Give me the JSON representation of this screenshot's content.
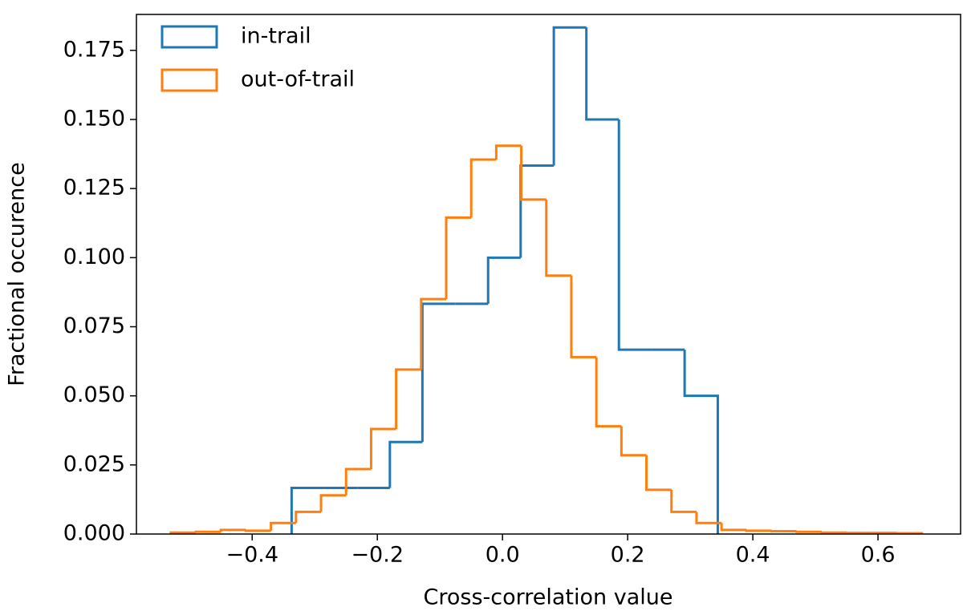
{
  "chart_data": {
    "type": "histogram",
    "xlabel": "Cross-correlation value",
    "ylabel": "Fractional occurence",
    "legend": "upper left",
    "xlim": [
      -0.585,
      0.732
    ],
    "ylim": [
      0,
      0.188
    ],
    "xticks": [
      {
        "value": -0.4,
        "label": "−0.4"
      },
      {
        "value": -0.2,
        "label": "−0.2"
      },
      {
        "value": 0,
        "label": "0.0"
      },
      {
        "value": 0.2,
        "label": "0.2"
      },
      {
        "value": 0.4,
        "label": "0.4"
      },
      {
        "value": 0.6,
        "label": "0.6"
      }
    ],
    "yticks": [
      {
        "value": 0,
        "label": "0.000"
      },
      {
        "value": 0.025,
        "label": "0.025"
      },
      {
        "value": 0.05,
        "label": "0.050"
      },
      {
        "value": 0.075,
        "label": "0.075"
      },
      {
        "value": 0.1,
        "label": "0.100"
      },
      {
        "value": 0.125,
        "label": "0.125"
      },
      {
        "value": 0.15,
        "label": "0.150"
      },
      {
        "value": 0.175,
        "label": "0.175"
      }
    ],
    "series": [
      {
        "name": "in-trail",
        "color": "#1f77b4",
        "bins": [
          -0.337,
          -0.285,
          -0.232,
          -0.18,
          -0.128,
          -0.075,
          -0.023,
          0.029,
          0.082,
          0.134,
          0.186,
          0.239,
          0.291,
          0.344
        ],
        "values": [
          0.0167,
          0.0167,
          0.0167,
          0.0333,
          0.0833,
          0.0833,
          0.1,
          0.1333,
          0.1833,
          0.15,
          0.0667,
          0.0667,
          0.05
        ]
      },
      {
        "name": "out-of-trail",
        "color": "#ff7f0e",
        "bins": [
          -0.53,
          -0.49,
          -0.45,
          -0.41,
          -0.37,
          -0.33,
          -0.29,
          -0.25,
          -0.21,
          -0.17,
          -0.13,
          -0.09,
          -0.05,
          -0.01,
          0.03,
          0.07,
          0.11,
          0.15,
          0.19,
          0.23,
          0.27,
          0.31,
          0.35,
          0.39,
          0.43,
          0.47,
          0.51,
          0.55,
          0.59,
          0.63,
          0.67
        ],
        "values": [
          0.0005,
          0.0008,
          0.0015,
          0.0012,
          0.004,
          0.008,
          0.014,
          0.0235,
          0.038,
          0.0595,
          0.085,
          0.1145,
          0.1355,
          0.1405,
          0.121,
          0.0935,
          0.064,
          0.039,
          0.0285,
          0.016,
          0.008,
          0.004,
          0.0015,
          0.0012,
          0.001,
          0.0008,
          0.0005,
          0.0004,
          0.0004,
          0.0003
        ]
      }
    ]
  }
}
